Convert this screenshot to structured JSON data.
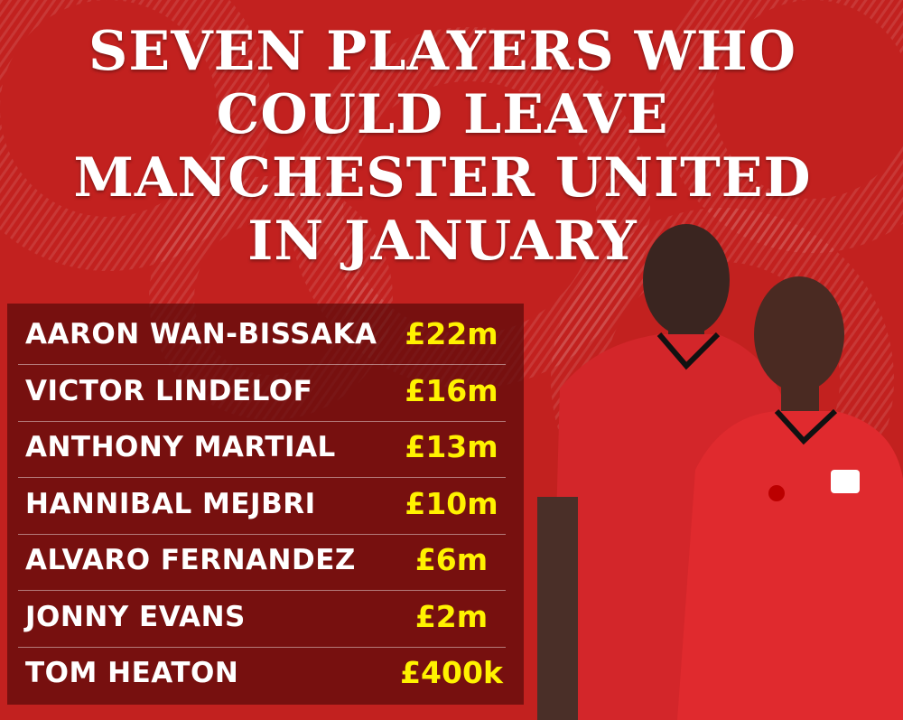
{
  "header": {
    "title_lines": [
      "SEVEN PLAYERS WHO",
      "COULD LEAVE",
      "MANCHESTER UNITED",
      "IN JANUARY"
    ]
  },
  "table": {
    "rows": [
      [
        "AARON WAN-BISSAKA",
        "£22m"
      ],
      [
        "VICTOR LINDELOF",
        "£16m"
      ],
      [
        "ANTHONY MARTIAL",
        "£13m"
      ],
      [
        "HANNIBAL MEJBRI",
        "£10m"
      ],
      [
        "ALVARO FERNANDEZ",
        "£6m"
      ],
      [
        "JONNY EVANS",
        "£2m"
      ],
      [
        "TOM HEATON",
        "£400k"
      ]
    ]
  }
}
